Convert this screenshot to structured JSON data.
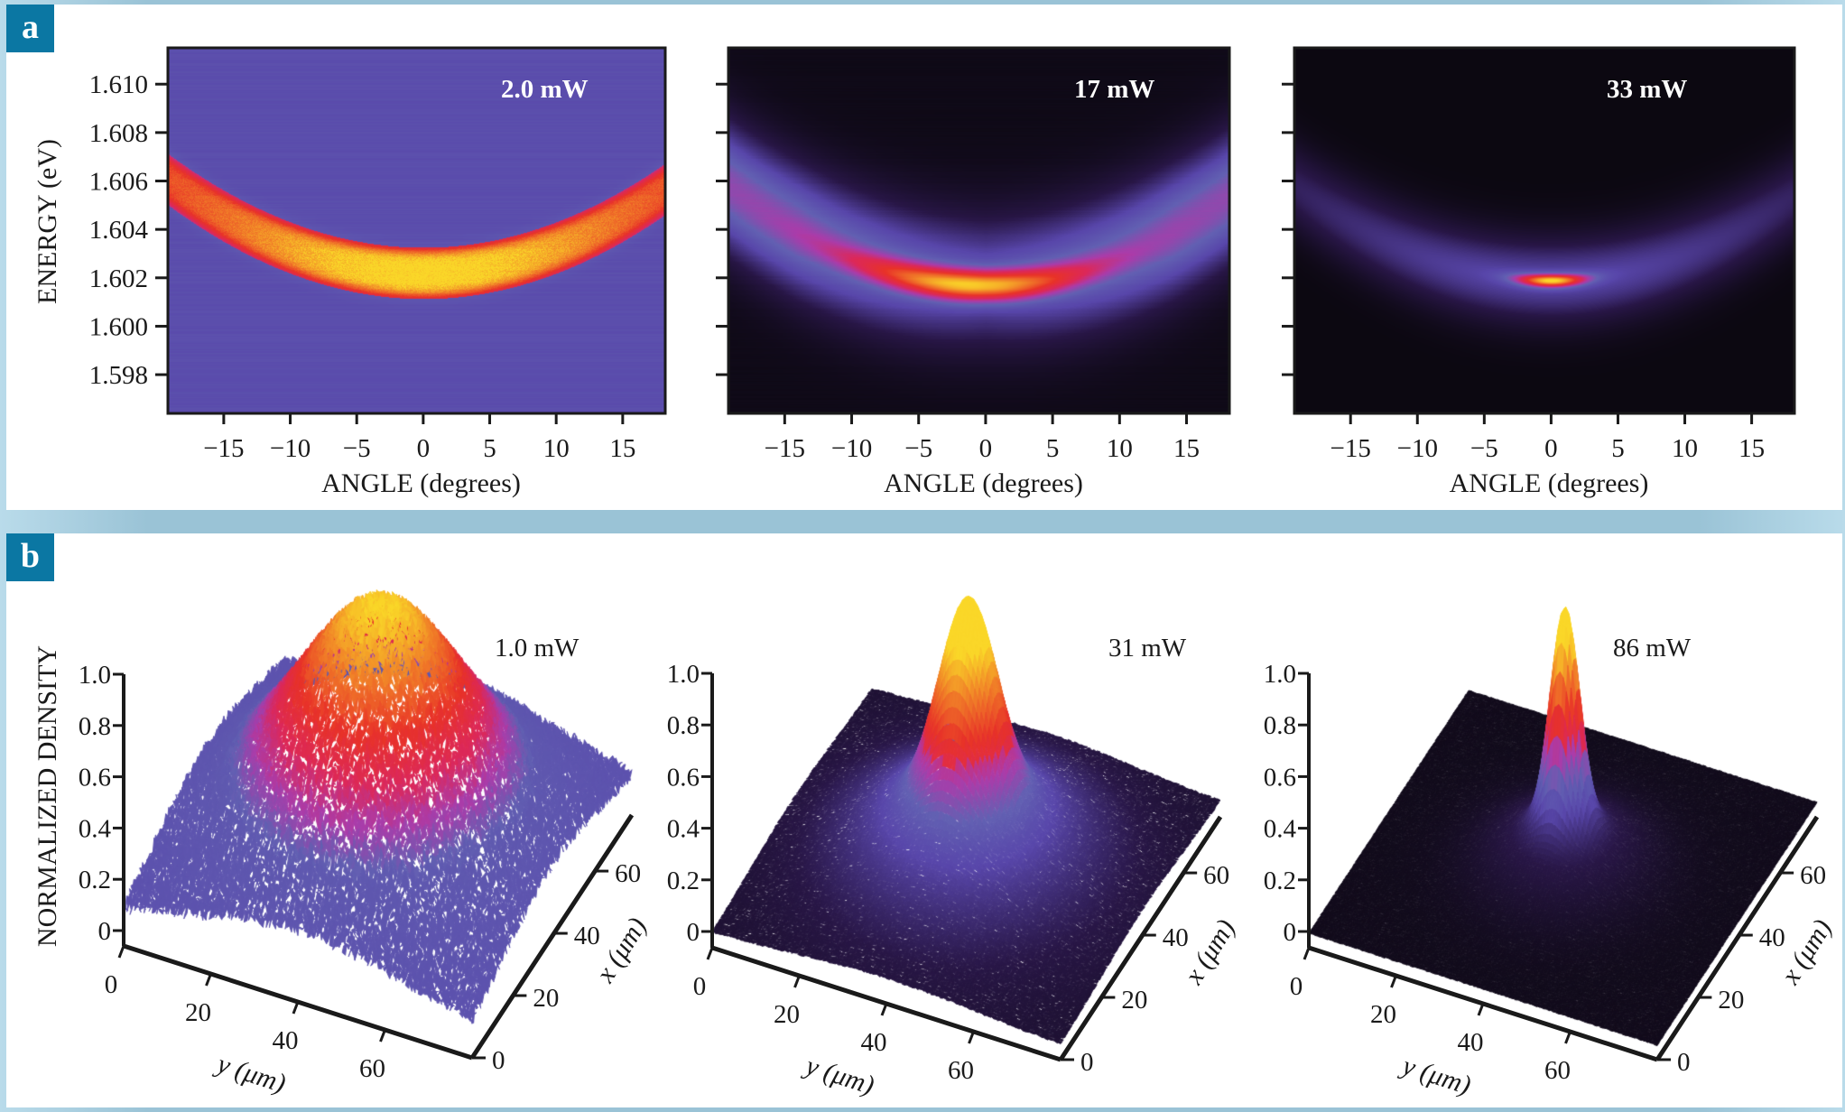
{
  "figure": {
    "panel_labels": [
      "a",
      "b"
    ],
    "colors": {
      "frame": "#9ac3d6",
      "badge": "#0b77a3",
      "axis": "#1a1a1a"
    }
  },
  "chart_data": [
    {
      "type": "heatmap",
      "panel": "a",
      "index": 1,
      "title": "2.0 mW",
      "xlabel": "ANGLE (degrees)",
      "ylabel": "ENERGY (eV)",
      "xlim": [
        -19.2,
        18.2
      ],
      "ylim": [
        1.5964,
        1.6115
      ],
      "xticks": [
        -15,
        -10,
        -5,
        0,
        5,
        10,
        15
      ],
      "xtick_labels": [
        "−15",
        "−10",
        "−5",
        "0",
        "5",
        "10",
        "15"
      ],
      "yticks": [
        1.61,
        1.608,
        1.606,
        1.604,
        1.602,
        1.6,
        1.598
      ],
      "ytick_labels": [
        "1.610",
        "1.608",
        "1.606",
        "1.604",
        "1.602",
        "1.600",
        "1.598"
      ],
      "background": "uniform blue (no condensation)",
      "dispersion": {
        "e0_eV": 1.6022,
        "curvature_eV_per_deg2": 1.05e-05,
        "band_halfwidth_eV": 0.0011
      },
      "peak_intensity_at_angle_deg": 0,
      "intensity_spread_deg": 14,
      "bg_level": 0.35
    },
    {
      "type": "heatmap",
      "panel": "a",
      "index": 2,
      "title": "17 mW",
      "xlabel": "ANGLE (degrees)",
      "ylabel": "",
      "xlim": [
        -19.2,
        18.2
      ],
      "ylim": [
        1.5964,
        1.6115
      ],
      "xticks": [
        -15,
        -10,
        -5,
        0,
        5,
        10,
        15
      ],
      "xtick_labels": [
        "−15",
        "−10",
        "−5",
        "0",
        "5",
        "10",
        "15"
      ],
      "yticks": [
        1.61,
        1.608,
        1.606,
        1.604,
        1.602,
        1.6,
        1.598
      ],
      "ytick_labels": [
        "",
        "",
        "",
        "",
        "",
        "",
        ""
      ],
      "dispersion": {
        "e0_eV": 1.6019,
        "curvature_eV_per_deg2": 1.05e-05,
        "band_halfwidth_eV": 0.0017
      },
      "peak_intensity_at_angle_deg": -1,
      "intensity_spread_deg": 8,
      "bg_level": 0.0
    },
    {
      "type": "heatmap",
      "panel": "a",
      "index": 3,
      "title": "33 mW",
      "xlabel": "ANGLE (degrees)",
      "ylabel": "",
      "xlim": [
        -19.2,
        18.2
      ],
      "ylim": [
        1.5964,
        1.6115
      ],
      "xticks": [
        -15,
        -10,
        -5,
        0,
        5,
        10,
        15
      ],
      "xtick_labels": [
        "−15",
        "−10",
        "−5",
        "0",
        "5",
        "10",
        "15"
      ],
      "yticks": [
        1.61,
        1.608,
        1.606,
        1.604,
        1.602,
        1.6,
        1.598
      ],
      "ytick_labels": [
        "",
        "",
        "",
        "",
        "",
        "",
        ""
      ],
      "dispersion": {
        "e0_eV": 1.6019,
        "curvature_eV_per_deg2": 1.05e-05,
        "band_halfwidth_eV": 0.0013
      },
      "peak_intensity_at_angle_deg": 0,
      "intensity_spread_deg": 2.5,
      "bg_level": 0.0
    },
    {
      "type": "surface3d",
      "panel": "b",
      "index": 1,
      "title": "1.0 mW",
      "zlabel": "NORMALIZED DENSITY",
      "xlabel": "x (μm)",
      "ylabel": "y (μm)",
      "zticks": [
        0,
        0.2,
        0.4,
        0.6,
        0.8,
        1.0
      ],
      "ztick_labels": [
        "0",
        "0.2",
        "0.4",
        "0.6",
        "0.8",
        "1.0"
      ],
      "xticks": [
        0,
        20,
        40,
        60
      ],
      "yticks": [
        0,
        20,
        40,
        60
      ],
      "xlim": [
        0,
        78
      ],
      "ylim": [
        0,
        80
      ],
      "zlim": [
        0,
        1.0
      ],
      "peak_center_um": [
        40,
        40
      ],
      "core_sigma_um": 12,
      "thermal_sigma_um": 26,
      "thermal_fraction": 0.55,
      "noise": 0.03,
      "peak": 1.0
    },
    {
      "type": "surface3d",
      "panel": "b",
      "index": 2,
      "title": "31 mW",
      "zlabel": "",
      "xlabel": "x (μm)",
      "ylabel": "y (μm)",
      "zticks": [
        0,
        0.2,
        0.4,
        0.6,
        0.8,
        1.0
      ],
      "ztick_labels": [
        "0",
        "0.2",
        "0.4",
        "0.6",
        "0.8",
        "1.0"
      ],
      "xticks": [
        0,
        20,
        40,
        60
      ],
      "yticks": [
        0,
        20,
        40,
        60
      ],
      "xlim": [
        0,
        78
      ],
      "ylim": [
        0,
        80
      ],
      "zlim": [
        0,
        1.0
      ],
      "peak_center_um": [
        40,
        40
      ],
      "core_sigma_um": 6,
      "thermal_sigma_um": 20,
      "thermal_fraction": 0.32,
      "noise": 0.008,
      "peak": 1.05
    },
    {
      "type": "surface3d",
      "panel": "b",
      "index": 3,
      "title": "86 mW",
      "zlabel": "",
      "xlabel": "x (μm)",
      "ylabel": "y (μm)",
      "zticks": [
        0,
        0.2,
        0.4,
        0.6,
        0.8,
        1.0
      ],
      "ztick_labels": [
        "0",
        "0.2",
        "0.4",
        "0.6",
        "0.8",
        "1.0"
      ],
      "xticks": [
        0,
        20,
        40,
        60
      ],
      "yticks": [
        0,
        20,
        40,
        60
      ],
      "xlim": [
        0,
        78
      ],
      "ylim": [
        0,
        80
      ],
      "zlim": [
        0,
        1.0
      ],
      "peak_center_um": [
        40,
        40
      ],
      "core_sigma_um": 3,
      "thermal_sigma_um": 12,
      "thermal_fraction": 0.2,
      "noise": 0.004,
      "peak": 1.0
    }
  ]
}
